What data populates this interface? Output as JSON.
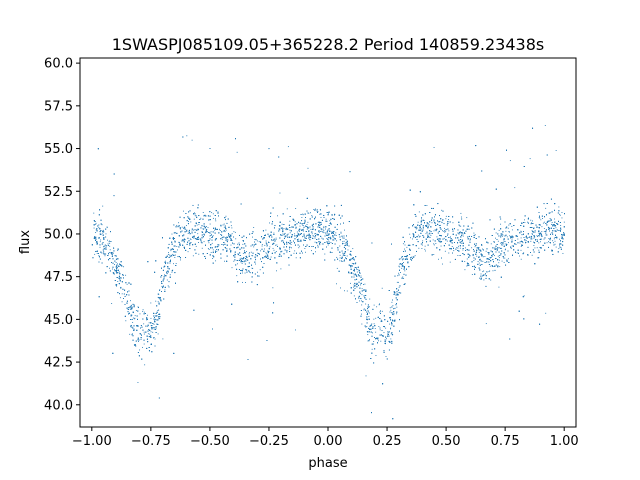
{
  "chart_data": {
    "type": "scatter",
    "title": "1SWASPJ085109.05+365228.2 Period 140859.23438s",
    "xlabel": "phase",
    "ylabel": "flux",
    "xlim": [
      -1.05,
      1.05
    ],
    "ylim": [
      38.7,
      60.3
    ],
    "xticks": [
      -1.0,
      -0.75,
      -0.5,
      -0.25,
      0.0,
      0.25,
      0.5,
      0.75,
      1.0
    ],
    "xtick_labels": [
      "−1.00",
      "−0.75",
      "−0.50",
      "−0.25",
      "0.00",
      "0.25",
      "0.50",
      "0.75",
      "1.00"
    ],
    "yticks": [
      40.0,
      42.5,
      45.0,
      47.5,
      50.0,
      52.5,
      55.0,
      57.5,
      60.0
    ],
    "ytick_labels": [
      "40.0",
      "42.5",
      "45.0",
      "47.5",
      "50.0",
      "52.5",
      "55.0",
      "57.5",
      "60.0"
    ],
    "grid": false,
    "marker_color": "#1f77b4",
    "series": [
      {
        "x": [
          -1.0,
          -0.97,
          -0.93,
          -0.9,
          -0.87,
          -0.84,
          -0.82,
          -0.8,
          -0.78,
          -0.76,
          -0.74,
          -0.72,
          -0.7,
          -0.67,
          -0.64,
          -0.6,
          -0.56,
          -0.52,
          -0.48,
          -0.45,
          -0.42,
          -0.4,
          -0.37,
          -0.34,
          -0.3,
          -0.27,
          -0.24,
          -0.2,
          -0.16,
          -0.12,
          -0.08,
          -0.04,
          0.0,
          0.03,
          0.07,
          0.1,
          0.13,
          0.16,
          0.18,
          0.2,
          0.22,
          0.24,
          0.26,
          0.28,
          0.3,
          0.33,
          0.36,
          0.4,
          0.44,
          0.48,
          0.52,
          0.55,
          0.58,
          0.6,
          0.63,
          0.66,
          0.7,
          0.73,
          0.76,
          0.8,
          0.84,
          0.88,
          0.92,
          0.96,
          1.0
        ],
        "y": [
          50.1,
          49.7,
          49.0,
          48.2,
          47.0,
          45.5,
          44.5,
          44.2,
          44.8,
          44.0,
          44.5,
          45.5,
          47.5,
          48.7,
          49.6,
          50.2,
          50.3,
          50.1,
          49.8,
          50.0,
          49.7,
          49.2,
          48.7,
          48.4,
          48.9,
          49.3,
          49.6,
          49.8,
          49.9,
          50.1,
          50.3,
          50.2,
          50.1,
          49.7,
          49.0,
          48.2,
          47.0,
          45.5,
          44.5,
          44.2,
          44.8,
          44.0,
          44.5,
          45.5,
          47.5,
          48.7,
          49.6,
          50.2,
          50.3,
          50.1,
          49.8,
          50.0,
          49.7,
          49.2,
          48.7,
          48.4,
          48.9,
          49.3,
          49.6,
          49.8,
          49.9,
          50.1,
          50.3,
          50.2,
          50.1
        ],
        "scatter_spread": 1.0
      }
    ]
  }
}
